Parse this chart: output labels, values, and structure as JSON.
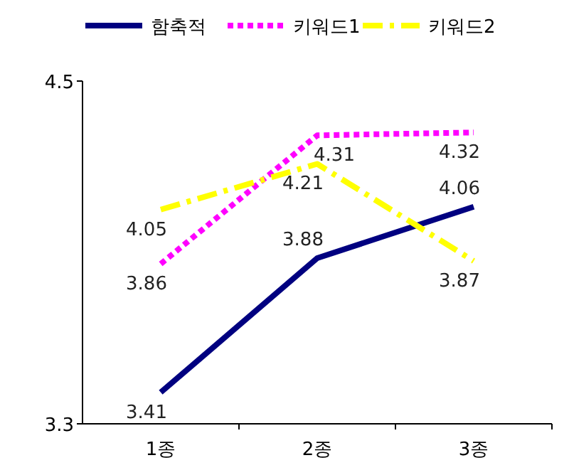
{
  "chart_data": {
    "type": "line",
    "categories": [
      "1종",
      "2종",
      "3종"
    ],
    "series": [
      {
        "name": "함축적",
        "color": "#000080",
        "values": [
          3.41,
          3.88,
          4.06
        ],
        "line_style": "solid"
      },
      {
        "name": "키워드1",
        "color": "#ff00ff",
        "values": [
          3.86,
          4.31,
          4.32
        ],
        "line_style": "dotted"
      },
      {
        "name": "키워드2",
        "color": "#ffff00",
        "values": [
          4.05,
          4.21,
          3.87
        ],
        "line_style": "dashed"
      }
    ],
    "ylim": [
      3.3,
      4.5
    ],
    "yticks": [
      3.3,
      4.5
    ],
    "data_labels": true,
    "legend": "top",
    "grid": false,
    "marker": "none"
  }
}
